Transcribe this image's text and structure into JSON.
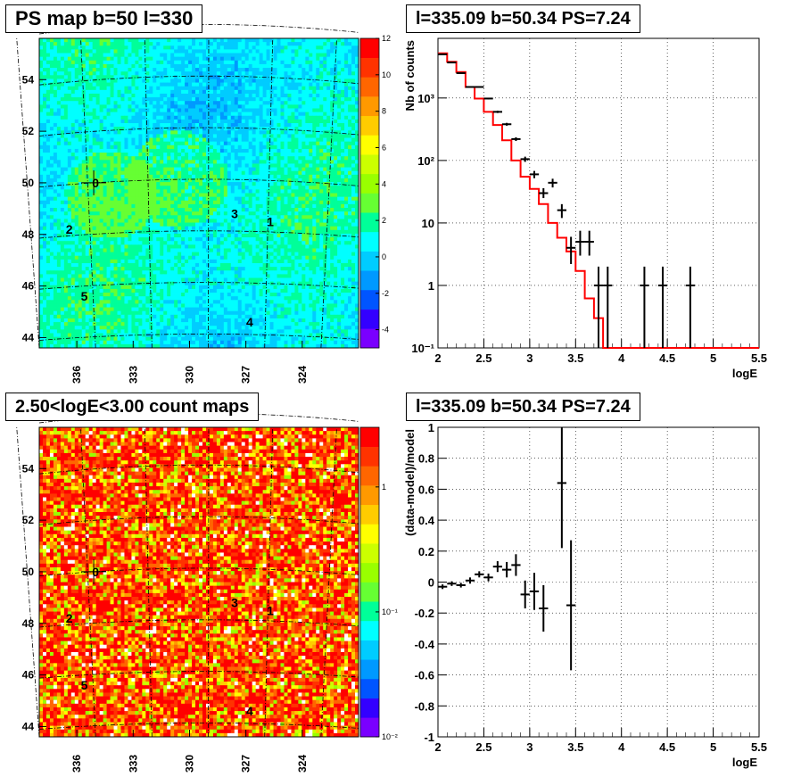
{
  "panels": {
    "ps_map": {
      "title": "PS map b=50 l=330"
    },
    "spectrum": {
      "title": "l=335.09 b=50.34 PS=7.24"
    },
    "count_map": {
      "title": "2.50<logE<3.00 count maps"
    },
    "residual": {
      "title": "l=335.09 b=50.34 PS=7.24"
    }
  },
  "chart_data": [
    {
      "type": "heatmap",
      "title": "PS map b=50 l=330",
      "xlabel": "",
      "ylabel": "",
      "x_ticks": [
        "336",
        "333",
        "330",
        "327",
        "324"
      ],
      "y_ticks": [
        "44",
        "46",
        "48",
        "50",
        "52",
        "54"
      ],
      "x_range": [
        338,
        321
      ],
      "y_range": [
        43.6,
        55.6
      ],
      "colorbar": {
        "min": -5,
        "max": 12,
        "ticks": [
          "12",
          "10",
          "8",
          "6",
          "4",
          "2",
          "0",
          "-2",
          "-4"
        ],
        "colors": [
          "#7a00ff",
          "#3300ff",
          "#0055ff",
          "#0099ff",
          "#00ccff",
          "#00ffff",
          "#00ff99",
          "#66ff33",
          "#99ff00",
          "#ccff00",
          "#ffff00",
          "#ffcc00",
          "#ff9900",
          "#ff6600",
          "#ff3300",
          "#ff0000"
        ]
      },
      "sources": [
        {
          "label": "0",
          "l": 335.0,
          "b": 50.0
        },
        {
          "label": "1",
          "l": 325.7,
          "b": 48.5
        },
        {
          "label": "2",
          "l": 336.4,
          "b": 48.2
        },
        {
          "label": "3",
          "l": 327.6,
          "b": 48.8
        },
        {
          "label": "4",
          "l": 326.8,
          "b": 44.6
        },
        {
          "label": "5",
          "l": 335.6,
          "b": 45.6
        }
      ],
      "marker": {
        "l": 335.1,
        "b": 50.0
      }
    },
    {
      "type": "line",
      "title": "l=335.09 b=50.34 PS=7.24",
      "xlabel": "logE",
      "ylabel": "Nb of counts",
      "log_y": true,
      "xlim": [
        2,
        5.5
      ],
      "ylim": [
        0.1,
        9000
      ],
      "x_ticks": [
        "2",
        "2.5",
        "3",
        "3.5",
        "4",
        "4.5",
        "5",
        "5.5"
      ],
      "y_ticks": [
        {
          "value": 0.1,
          "label": "10⁻¹"
        },
        {
          "value": 1,
          "label": "1"
        },
        {
          "value": 10,
          "label": "10"
        },
        {
          "value": 100,
          "label": "10²"
        },
        {
          "value": 1000,
          "label": "10³"
        }
      ],
      "grid": true,
      "series": [
        {
          "kind": "model-step",
          "color": "#ff0000",
          "edges": [
            2.0,
            2.1,
            2.2,
            2.3,
            2.4,
            2.5,
            2.6,
            2.7,
            2.8,
            2.9,
            3.0,
            3.1,
            3.2,
            3.3,
            3.4,
            3.5,
            3.6,
            3.7,
            3.8,
            3.9,
            4.0,
            4.1,
            4.2,
            4.3,
            4.4,
            4.5,
            4.6,
            4.7,
            4.8,
            4.9,
            5.0,
            5.1,
            5.2,
            5.3,
            5.4,
            5.5
          ],
          "values": [
            5200,
            3800,
            2600,
            1500,
            980,
            600,
            370,
            210,
            100,
            55,
            35,
            20,
            10,
            5.8,
            3.5,
            1.7,
            0.62,
            0.3,
            0.1,
            0.1,
            0.1,
            0.1,
            0.1,
            0.1,
            0.1,
            0.1,
            0.1,
            0.1,
            0.1,
            0.1,
            0.1,
            0.1,
            0.1,
            0.1,
            0.1
          ]
        },
        {
          "kind": "data-points",
          "color": "#000000",
          "points": [
            {
              "x": 2.05,
              "y": 5000,
              "lo": 4930,
              "hi": 5070
            },
            {
              "x": 2.15,
              "y": 3700,
              "lo": 3640,
              "hi": 3760
            },
            {
              "x": 2.25,
              "y": 2500,
              "lo": 2450,
              "hi": 2550
            },
            {
              "x": 2.35,
              "y": 1500,
              "lo": 1460,
              "hi": 1540
            },
            {
              "x": 2.45,
              "y": 1500,
              "lo": 1460,
              "hi": 1540
            },
            {
              "x": 2.55,
              "y": 980,
              "lo": 950,
              "hi": 1010
            },
            {
              "x": 2.65,
              "y": 600,
              "lo": 575,
              "hi": 625
            },
            {
              "x": 2.75,
              "y": 380,
              "lo": 360,
              "hi": 400
            },
            {
              "x": 2.85,
              "y": 220,
              "lo": 205,
              "hi": 235
            },
            {
              "x": 2.95,
              "y": 105,
              "lo": 95,
              "hi": 115
            },
            {
              "x": 3.05,
              "y": 60,
              "lo": 52,
              "hi": 68
            },
            {
              "x": 3.15,
              "y": 30,
              "lo": 25,
              "hi": 36
            },
            {
              "x": 3.25,
              "y": 44,
              "lo": 37,
              "hi": 51
            },
            {
              "x": 3.35,
              "y": 16,
              "lo": 12,
              "hi": 20
            },
            {
              "x": 3.45,
              "y": 4,
              "lo": 2.2,
              "hi": 6
            },
            {
              "x": 3.55,
              "y": 5,
              "lo": 3,
              "hi": 7.5
            },
            {
              "x": 3.65,
              "y": 5,
              "lo": 3,
              "hi": 7.5
            },
            {
              "x": 3.75,
              "y": 1,
              "lo": 0.1,
              "hi": 2
            },
            {
              "x": 3.85,
              "y": 1,
              "lo": 0.1,
              "hi": 2
            },
            {
              "x": 4.25,
              "y": 1,
              "lo": 0.1,
              "hi": 2
            },
            {
              "x": 4.45,
              "y": 1,
              "lo": 0.1,
              "hi": 2
            },
            {
              "x": 4.75,
              "y": 1,
              "lo": 0.1,
              "hi": 2
            }
          ]
        }
      ]
    },
    {
      "type": "heatmap",
      "title": "2.50<logE<3.00 count maps",
      "xlabel": "",
      "ylabel": "",
      "x_ticks": [
        "336",
        "333",
        "330",
        "327",
        "324"
      ],
      "y_ticks": [
        "44",
        "46",
        "48",
        "50",
        "52",
        "54"
      ],
      "x_range": [
        338,
        321
      ],
      "y_range": [
        43.6,
        55.6
      ],
      "log_colorbar": true,
      "colorbar": {
        "min": 0.01,
        "max": 3,
        "ticks": [
          "1",
          "10⁻¹",
          "10⁻²"
        ],
        "colors": [
          "#7a00ff",
          "#3300ff",
          "#0055ff",
          "#0099ff",
          "#00ccff",
          "#00ffff",
          "#00ff99",
          "#66ff33",
          "#99ff00",
          "#ccff00",
          "#ffff00",
          "#ffcc00",
          "#ff9900",
          "#ff6600",
          "#ff3300",
          "#ff0000"
        ]
      },
      "sources": [
        {
          "label": "0",
          "l": 335.0,
          "b": 50.0
        },
        {
          "label": "1",
          "l": 325.7,
          "b": 48.5
        },
        {
          "label": "2",
          "l": 336.4,
          "b": 48.2
        },
        {
          "label": "3",
          "l": 327.6,
          "b": 48.8
        },
        {
          "label": "4",
          "l": 326.8,
          "b": 44.6
        },
        {
          "label": "5",
          "l": 335.6,
          "b": 45.6
        }
      ],
      "marker": {
        "l": 335.1,
        "b": 50.0
      }
    },
    {
      "type": "scatter",
      "title": "l=335.09 b=50.34 PS=7.24",
      "xlabel": "logE",
      "ylabel": "(data-model)/model",
      "xlim": [
        2,
        5.5
      ],
      "ylim": [
        -1,
        1
      ],
      "x_ticks": [
        "2",
        "2.5",
        "3",
        "3.5",
        "4",
        "4.5",
        "5",
        "5.5"
      ],
      "y_ticks": [
        "-1",
        "-0.8",
        "-0.6",
        "-0.4",
        "-0.2",
        "0",
        "0.2",
        "0.4",
        "0.6",
        "0.8",
        "1"
      ],
      "grid": true,
      "series": [
        {
          "kind": "data-points",
          "color": "#000000",
          "points": [
            {
              "x": 2.05,
              "y": -0.03,
              "lo": -0.045,
              "hi": -0.015
            },
            {
              "x": 2.15,
              "y": -0.01,
              "lo": -0.025,
              "hi": 0.005
            },
            {
              "x": 2.25,
              "y": -0.02,
              "lo": -0.035,
              "hi": -0.005
            },
            {
              "x": 2.35,
              "y": 0.01,
              "lo": -0.01,
              "hi": 0.03
            },
            {
              "x": 2.45,
              "y": 0.05,
              "lo": 0.03,
              "hi": 0.07
            },
            {
              "x": 2.55,
              "y": 0.03,
              "lo": 0.005,
              "hi": 0.055
            },
            {
              "x": 2.65,
              "y": 0.1,
              "lo": 0.065,
              "hi": 0.135
            },
            {
              "x": 2.75,
              "y": 0.08,
              "lo": 0.03,
              "hi": 0.13
            },
            {
              "x": 2.85,
              "y": 0.11,
              "lo": 0.04,
              "hi": 0.18
            },
            {
              "x": 2.95,
              "y": -0.08,
              "lo": -0.17,
              "hi": 0.01
            },
            {
              "x": 3.05,
              "y": -0.06,
              "lo": -0.18,
              "hi": 0.06
            },
            {
              "x": 3.15,
              "y": -0.17,
              "lo": -0.32,
              "hi": -0.02
            },
            {
              "x": 3.35,
              "y": 0.64,
              "lo": 0.22,
              "hi": 1.0
            },
            {
              "x": 3.45,
              "y": -0.15,
              "lo": -0.57,
              "hi": 0.27
            }
          ]
        }
      ]
    }
  ]
}
